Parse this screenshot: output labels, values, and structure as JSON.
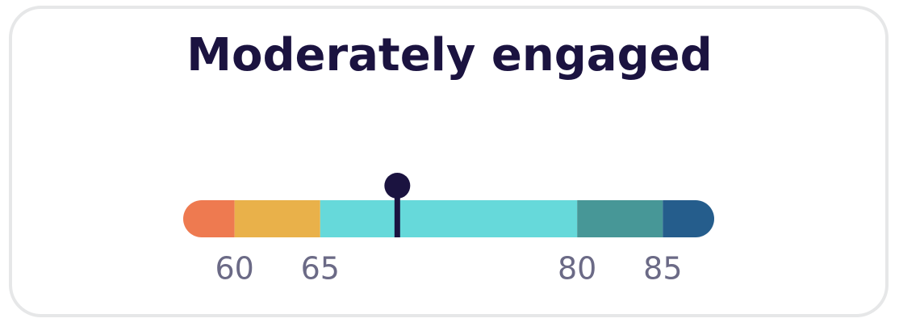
{
  "chart_data": {
    "type": "gauge",
    "title": "Moderately engaged",
    "xlim": [
      57,
      88
    ],
    "xticks": [
      60,
      65,
      80,
      85
    ],
    "band_colors": [
      "#ee7a50",
      "#e9b14a",
      "#66d9da",
      "#479797",
      "#255d8c"
    ],
    "value": 69.5,
    "marker_color": "#1b1340"
  }
}
